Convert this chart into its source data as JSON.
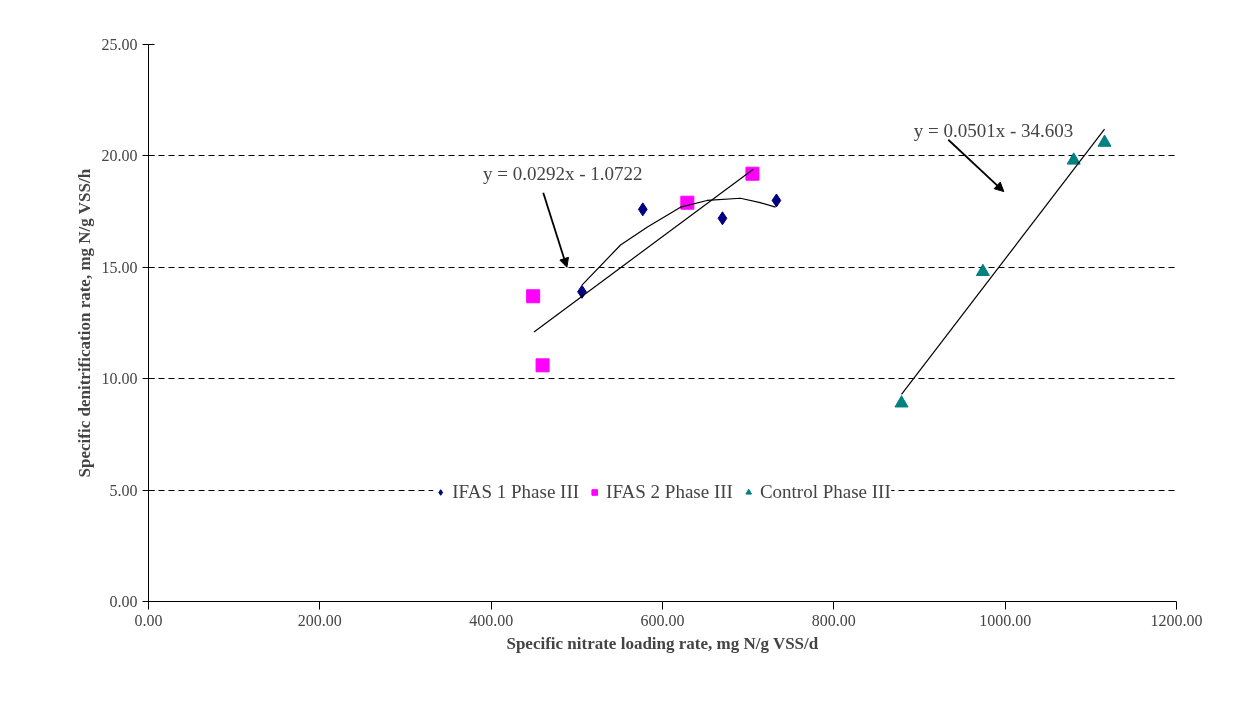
{
  "chart_data": {
    "type": "scatter",
    "xlabel": "Specific nitrate loading rate, mg N/g VSS/d",
    "ylabel": "Specific denitrification rate, mg N/g VSS/h",
    "xlim": [
      0,
      1200
    ],
    "ylim": [
      0,
      25
    ],
    "xticks": [
      {
        "value": 0,
        "label": "0.00"
      },
      {
        "value": 200,
        "label": "200.00"
      },
      {
        "value": 400,
        "label": "400.00"
      },
      {
        "value": 600,
        "label": "600.00"
      },
      {
        "value": 800,
        "label": "800.00"
      },
      {
        "value": 1000,
        "label": "1000.00"
      },
      {
        "value": 1200,
        "label": "1200.00"
      }
    ],
    "yticks": [
      {
        "value": 0,
        "label": "0.00"
      },
      {
        "value": 5,
        "label": "5.00"
      },
      {
        "value": 10,
        "label": "10.00"
      },
      {
        "value": 15,
        "label": "15.00"
      },
      {
        "value": 20,
        "label": "20.00"
      },
      {
        "value": 25,
        "label": "25.00"
      }
    ],
    "grid": "y",
    "legend": "bottom",
    "series": [
      {
        "name": "IFAS 1 Phase III",
        "color": "#000080",
        "marker": "diamond",
        "x": [
          506,
          577,
          670,
          733
        ],
        "values": [
          13.9,
          17.6,
          17.2,
          18.0
        ]
      },
      {
        "name": "IFAS 2 Phase III",
        "color": "#ff00ff",
        "marker": "square",
        "x": [
          449,
          460,
          629,
          705
        ],
        "values": [
          13.7,
          10.6,
          17.9,
          19.2
        ]
      },
      {
        "name": "Control Phase III",
        "color": "#008080",
        "marker": "triangle",
        "x": [
          879,
          974,
          1080,
          1116
        ],
        "values": [
          8.9,
          14.8,
          19.8,
          20.6
        ]
      },
      {
        "type": "line",
        "color": "#000000",
        "x": [
          506,
          551,
          582,
          621,
          652,
          691,
          714,
          732
        ],
        "values": [
          14.2,
          16.0,
          16.8,
          17.7,
          18.0,
          18.1,
          17.9,
          17.7
        ]
      },
      {
        "type": "line",
        "color": "#000000",
        "x": [
          450,
          706
        ],
        "values": [
          12.1,
          19.4
        ]
      },
      {
        "type": "line",
        "color": "#000000",
        "x": [
          879,
          1116
        ],
        "values": [
          9.3,
          21.2
        ]
      }
    ],
    "annotations": [
      "y = 0.0292x - 1.0722",
      "y = 0.0501x - 34.603"
    ]
  }
}
